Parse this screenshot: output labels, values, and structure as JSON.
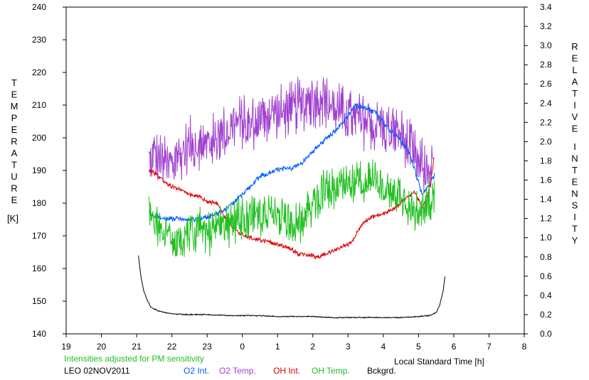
{
  "chart_data": {
    "type": "line",
    "station": "LEO 02NOV2011",
    "note": "Intensities adjusted for PM sensitivity",
    "xlabel": "Local Standard Time [h]",
    "ylabel_left": "TEMPERATURE",
    "ylabel_left_unit": "[K]",
    "ylabel_right_1": "RELATIVE",
    "ylabel_right_2": "INTENSITY",
    "x_ticks": [
      "19",
      "20",
      "21",
      "22",
      "23",
      "0",
      "1",
      "2",
      "3",
      "4",
      "5",
      "6",
      "7",
      "8"
    ],
    "y_left_ticks": [
      "140",
      "150",
      "160",
      "170",
      "180",
      "190",
      "200",
      "210",
      "220",
      "230",
      "240"
    ],
    "y_right_ticks": [
      "0.0",
      "0.2",
      "0.4",
      "0.6",
      "0.8",
      "1.0",
      "1.2",
      "1.4",
      "1.6",
      "1.8",
      "2.0",
      "2.2",
      "2.4",
      "2.6",
      "2.8",
      "3.0",
      "3.2",
      "3.4"
    ],
    "xlim": [
      19,
      32
    ],
    "ylim_left": [
      140,
      240
    ],
    "ylim_right": [
      0,
      3.4
    ],
    "grid": false,
    "legend": [
      {
        "label": "O2 Int.",
        "color": "#0060ff"
      },
      {
        "label": "O2 Temp.",
        "color": "#a040d0"
      },
      {
        "label": "OH Int.",
        "color": "#e00000"
      },
      {
        "label": "OH Temp.",
        "color": "#20c020"
      },
      {
        "label": "Bckgrd.",
        "color": "#000000"
      }
    ],
    "series": [
      {
        "name": "O2 Temp.",
        "axis": "left",
        "color": "#a040d0",
        "amp": 9,
        "x": [
          21.35,
          21.5,
          21.8,
          22,
          22.3,
          22.5,
          22.7,
          23,
          23.3,
          23.6,
          23.9,
          24.2,
          24.5,
          24.8,
          25,
          25.3,
          25.6,
          25.9,
          26.2,
          26.5,
          26.8,
          27.1,
          27.4,
          27.7,
          28,
          28.3,
          28.6,
          28.9,
          29.2,
          29.4
        ],
        "y": [
          193,
          195,
          192,
          191,
          196,
          198,
          199,
          198,
          200,
          203,
          205,
          204,
          206,
          207,
          208,
          208,
          210,
          211,
          212,
          210,
          208,
          206,
          205,
          204,
          203,
          202,
          200,
          194,
          190,
          190
        ]
      },
      {
        "name": "O2 Int.",
        "axis": "right",
        "color": "#0060ff",
        "amp": 0.03,
        "x": [
          21.35,
          21.6,
          21.9,
          22.2,
          22.5,
          22.8,
          23,
          23.3,
          23.6,
          23.9,
          24.2,
          24.5,
          24.8,
          25.1,
          25.4,
          25.7,
          26,
          26.3,
          26.6,
          26.9,
          27.2,
          27.5,
          27.8,
          28.1,
          28.4,
          28.7,
          28.9,
          29.1,
          29.3,
          29.45
        ],
        "y": [
          1.25,
          1.22,
          1.2,
          1.2,
          1.18,
          1.2,
          1.22,
          1.25,
          1.32,
          1.42,
          1.52,
          1.64,
          1.68,
          1.72,
          1.72,
          1.78,
          1.9,
          2.0,
          2.1,
          2.22,
          2.38,
          2.35,
          2.3,
          2.15,
          2.05,
          1.92,
          1.7,
          1.45,
          1.55,
          1.65
        ]
      },
      {
        "name": "OH Int.",
        "axis": "right",
        "color": "#e00000",
        "amp": 0.025,
        "x": [
          21.35,
          21.6,
          21.9,
          22.2,
          22.5,
          22.8,
          23,
          23.3,
          23.6,
          23.9,
          24.2,
          24.5,
          24.8,
          25.1,
          25.4,
          25.6,
          25.9,
          26.2,
          26.5,
          26.8,
          27.1,
          27.4,
          27.7,
          28,
          28.3,
          28.6,
          28.9,
          29.1,
          29.3,
          29.45
        ],
        "y": [
          1.7,
          1.65,
          1.55,
          1.5,
          1.45,
          1.42,
          1.38,
          1.35,
          1.15,
          1.05,
          1.0,
          0.98,
          0.95,
          0.92,
          0.88,
          0.83,
          0.82,
          0.8,
          0.85,
          0.9,
          0.95,
          1.15,
          1.22,
          1.25,
          1.3,
          1.4,
          1.48,
          1.3,
          1.5,
          1.85
        ]
      },
      {
        "name": "OH Temp.",
        "axis": "left",
        "color": "#20c020",
        "amp": 7,
        "x": [
          21.35,
          21.6,
          21.9,
          22.2,
          22.5,
          22.8,
          23,
          23.3,
          23.6,
          23.9,
          24.2,
          24.5,
          24.8,
          25.1,
          25.4,
          25.6,
          25.9,
          26.2,
          26.5,
          26.8,
          27.1,
          27.4,
          27.7,
          28,
          28.3,
          28.6,
          28.9,
          29.1,
          29.3,
          29.45
        ],
        "y": [
          177,
          172,
          170,
          169,
          171,
          172,
          170,
          172,
          173,
          175,
          175,
          176,
          176,
          177,
          175,
          173,
          178,
          183,
          184,
          184,
          185,
          187,
          188,
          186,
          184,
          180,
          177,
          177,
          180,
          181
        ]
      },
      {
        "name": "Bckgrd.",
        "axis": "right",
        "color": "#000000",
        "amp": 0.006,
        "x": [
          21.05,
          21.12,
          21.2,
          21.3,
          21.4,
          21.6,
          21.8,
          22,
          22.4,
          23,
          23.6,
          24,
          24.5,
          25,
          25.5,
          26,
          26.5,
          27,
          27.5,
          28,
          28.5,
          29,
          29.3,
          29.5,
          29.6,
          29.7,
          29.75
        ],
        "y": [
          0.82,
          0.6,
          0.45,
          0.35,
          0.28,
          0.24,
          0.22,
          0.21,
          0.2,
          0.2,
          0.19,
          0.19,
          0.19,
          0.18,
          0.18,
          0.18,
          0.17,
          0.17,
          0.17,
          0.17,
          0.17,
          0.18,
          0.19,
          0.22,
          0.3,
          0.45,
          0.6
        ]
      }
    ]
  }
}
